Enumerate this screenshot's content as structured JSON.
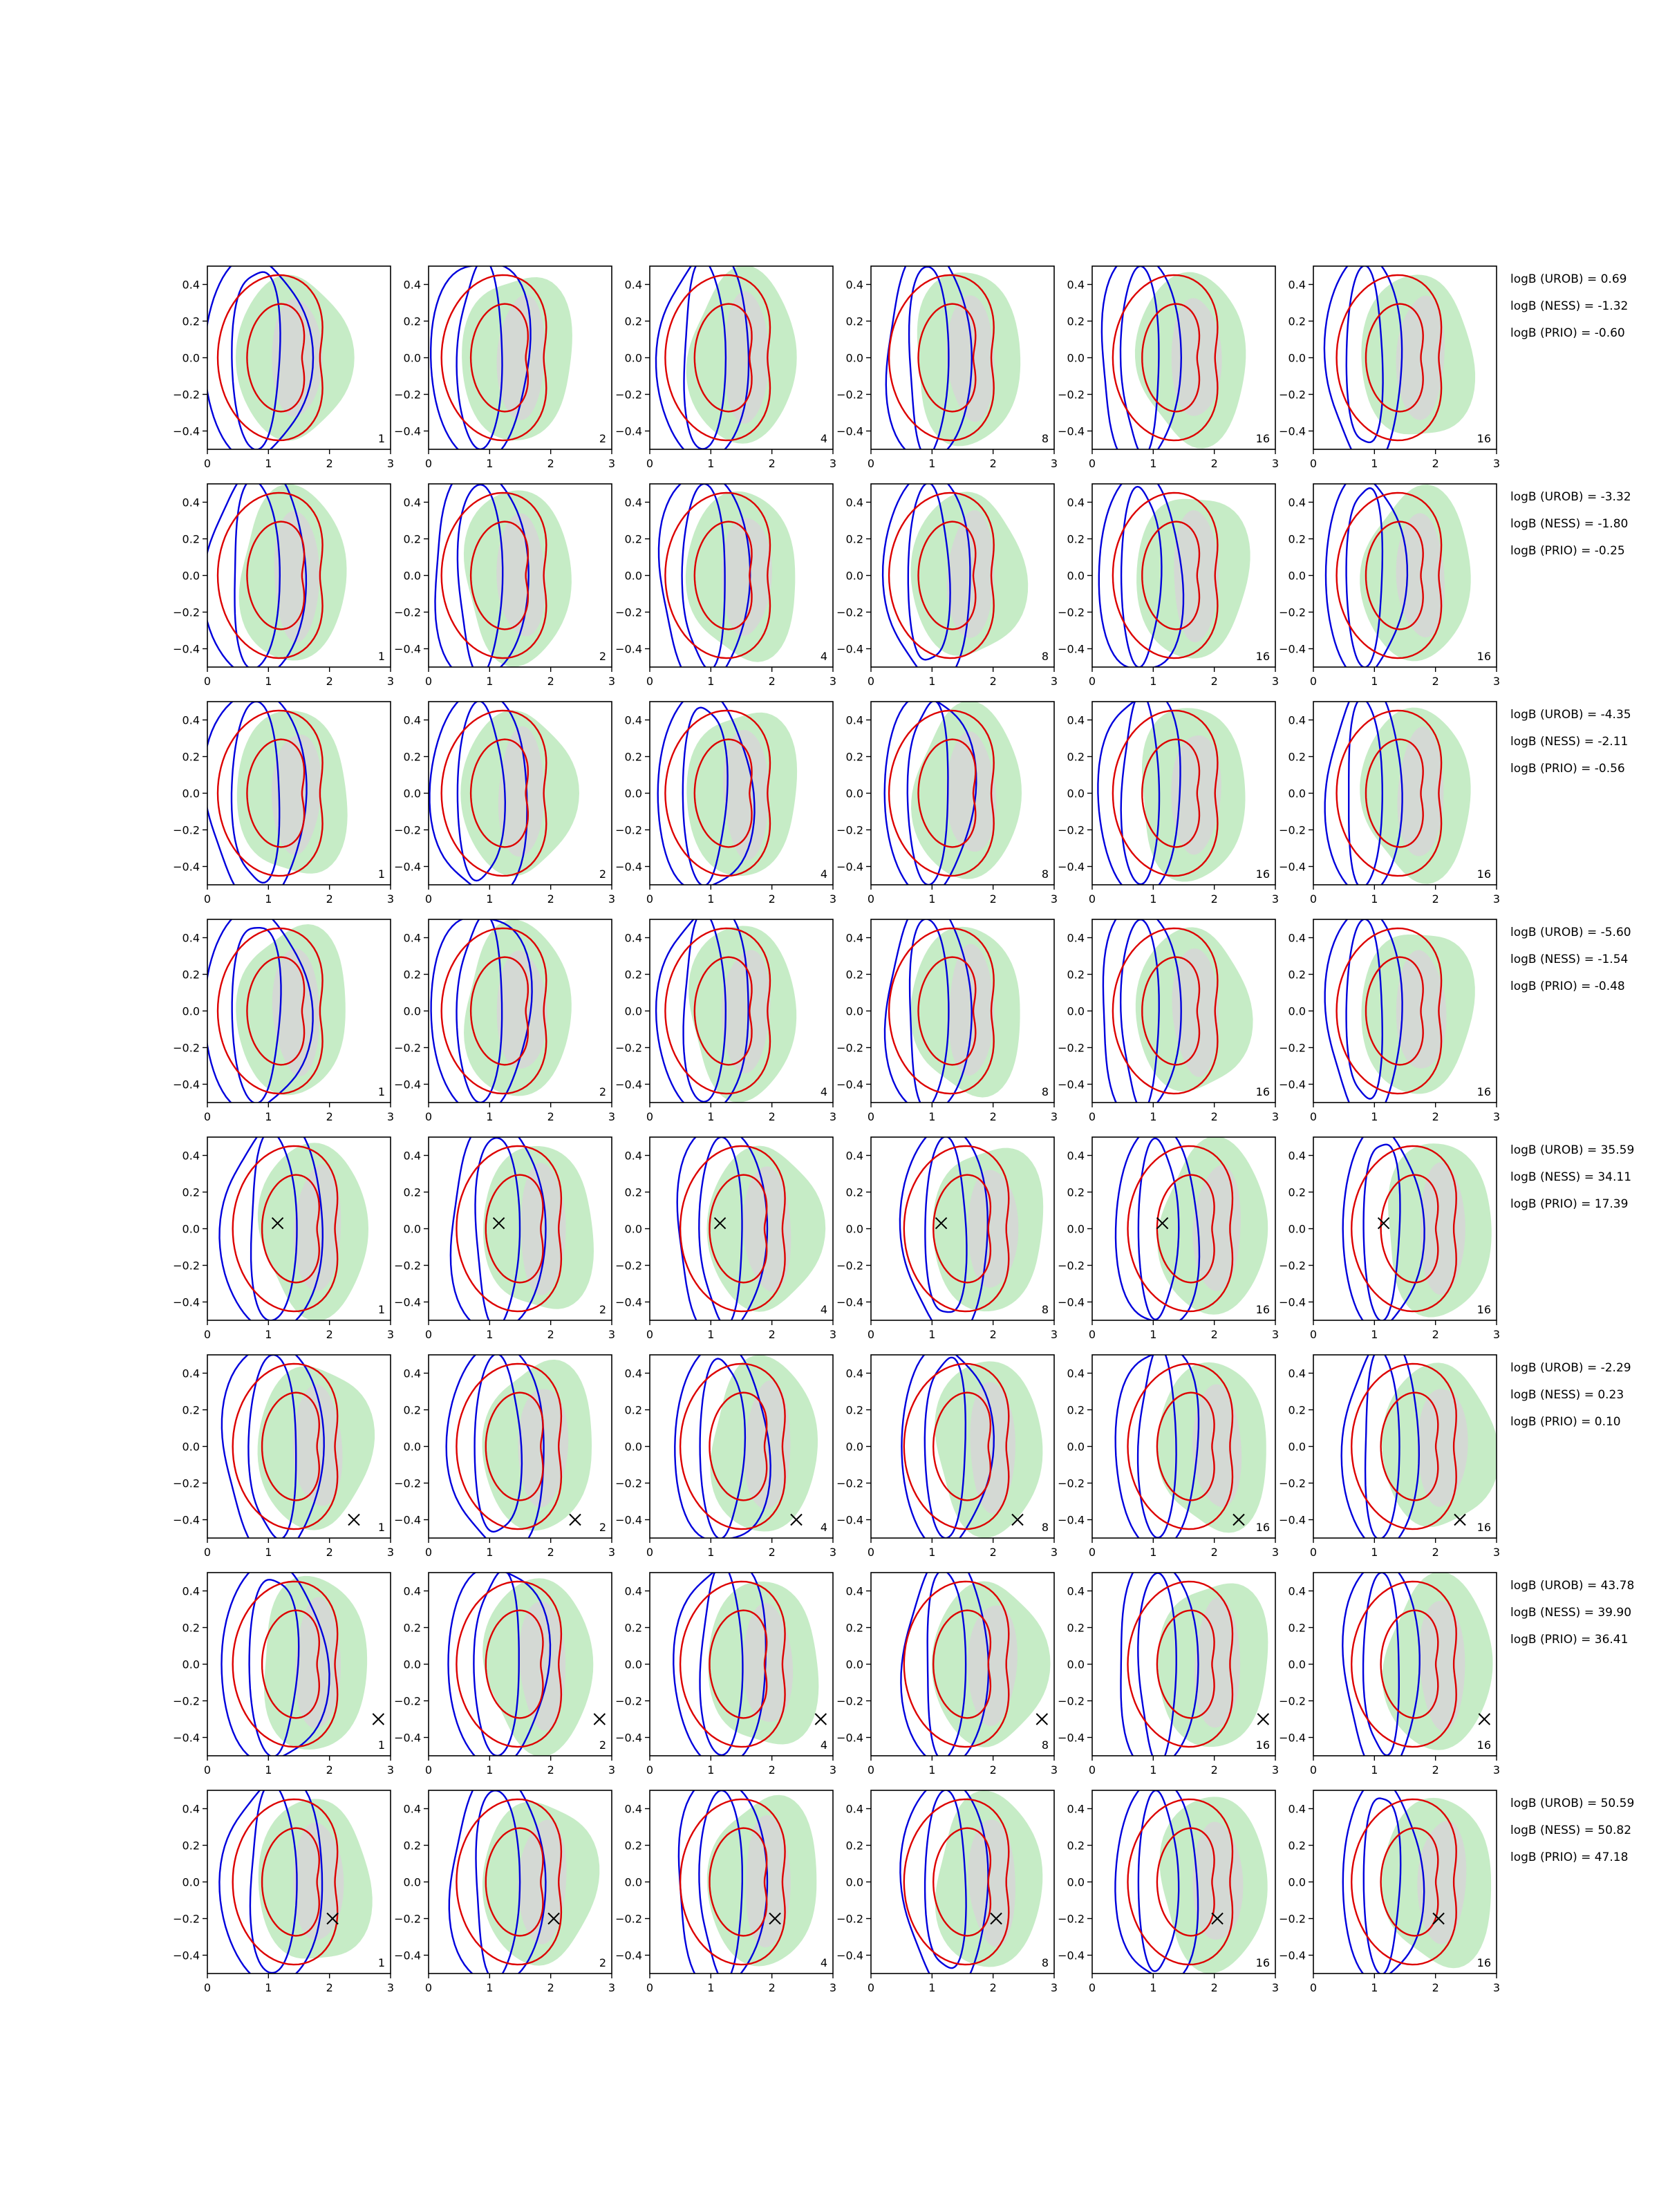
{
  "figure": {
    "x_ticks": [
      "0",
      "1",
      "2",
      "3"
    ],
    "y_ticks": [
      "0.4",
      "0.2",
      "0.0",
      "−0.2",
      "−0.4"
    ],
    "colors": {
      "filled_outer": "#c6ecc6",
      "filled_inner": "#d6d6d6",
      "contour_a": "#0000dd",
      "contour_b": "#dd0000",
      "marker": "#000000",
      "axes": "#000000"
    }
  },
  "chart_data": {
    "type": "contour-grid",
    "columns": [
      "1",
      "2",
      "4",
      "8",
      "16",
      "16"
    ],
    "xlim": [
      0,
      3
    ],
    "ylim": [
      -0.5,
      0.5
    ],
    "rows": [
      {
        "marker": null,
        "stats": [
          "logB (UROB) = 0.69",
          "logB (NESS) = -1.32",
          "logB (PRIO) = -0.60"
        ]
      },
      {
        "marker": null,
        "stats": [
          "logB (UROB) = -3.32",
          "logB (NESS) = -1.80",
          "logB (PRIO) = -0.25"
        ]
      },
      {
        "marker": null,
        "stats": [
          "logB (UROB) = -4.35",
          "logB (NESS) = -2.11",
          "logB (PRIO) = -0.56"
        ]
      },
      {
        "marker": null,
        "stats": [
          "logB (UROB) = -5.60",
          "logB (NESS) = -1.54",
          "logB (PRIO) = -0.48"
        ]
      },
      {
        "marker": [
          1.15,
          0.03
        ],
        "stats": [
          "logB (UROB) = 35.59",
          "logB (NESS) = 34.11",
          "logB (PRIO) = 17.39"
        ]
      },
      {
        "marker": [
          2.4,
          -0.4
        ],
        "stats": [
          "logB (UROB) = -2.29",
          "logB (NESS) = 0.23",
          "logB (PRIO) = 0.10"
        ]
      },
      {
        "marker": [
          2.8,
          -0.3
        ],
        "stats": [
          "logB (UROB) = 43.78",
          "logB (NESS) = 39.90",
          "logB (PRIO) = 36.41"
        ]
      },
      {
        "marker": [
          2.05,
          -0.2
        ],
        "stats": [
          "logB (UROB) = 50.59",
          "logB (NESS) = 50.82",
          "logB (PRIO) = 47.18"
        ]
      }
    ]
  }
}
